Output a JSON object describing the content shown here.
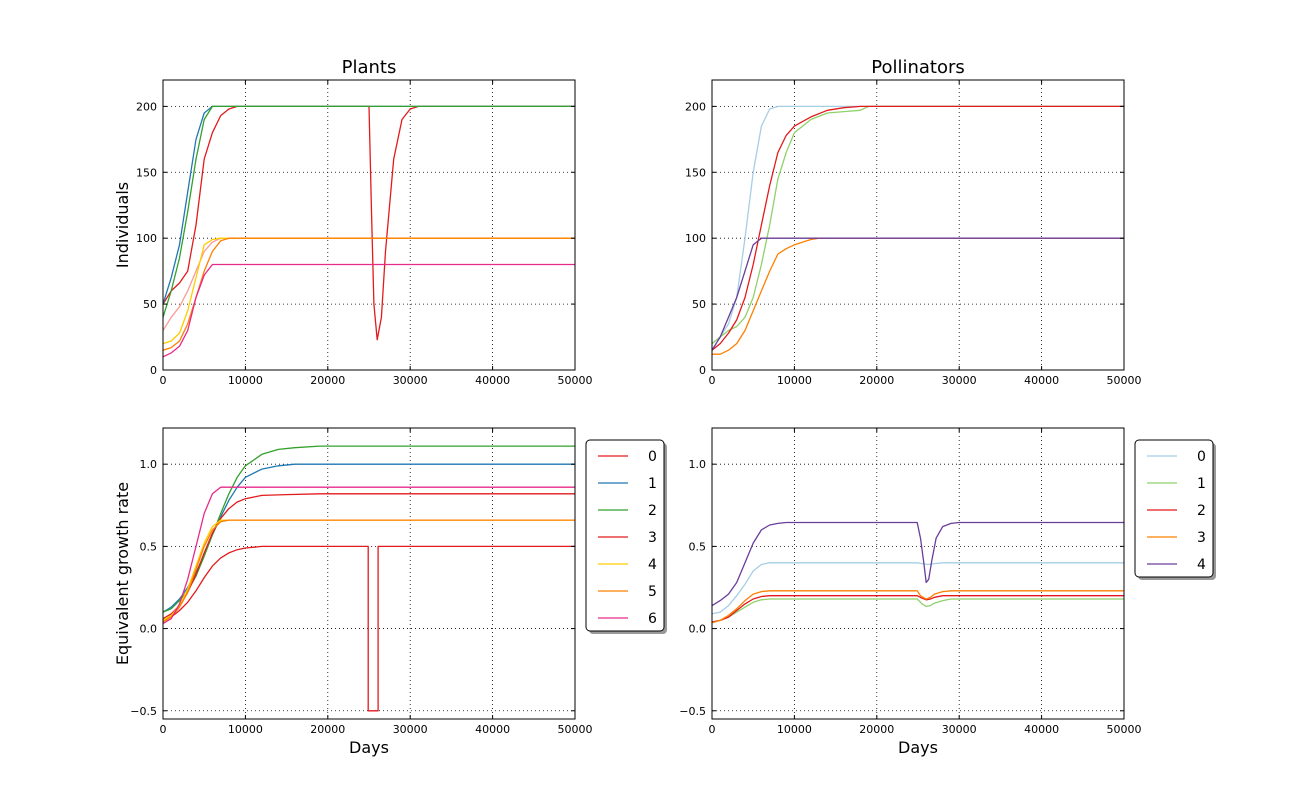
{
  "chart_data": [
    {
      "type": "line",
      "title": "Plants",
      "xlabel": "",
      "ylabel": "Individuals",
      "xlim": [
        0,
        50000
      ],
      "ylim": [
        0,
        220
      ],
      "xticks": [
        0,
        10000,
        20000,
        30000,
        40000,
        50000
      ],
      "yticks": [
        0,
        50,
        100,
        150,
        200
      ],
      "grid": true,
      "series": [
        {
          "color": "#e31a1c",
          "x": [
            0,
            1000,
            2000,
            3000,
            4000,
            5000,
            6000,
            7000,
            8000,
            9000,
            10000,
            25000,
            25300,
            25600,
            26000,
            26500,
            27000,
            28000,
            29000,
            30000,
            31000,
            50000
          ],
          "y": [
            50,
            60,
            66,
            75,
            110,
            160,
            180,
            193,
            198,
            200,
            200,
            200,
            120,
            50,
            23,
            40,
            90,
            160,
            190,
            198,
            200,
            200
          ]
        },
        {
          "color": "#1f78b4",
          "x": [
            0,
            1000,
            2000,
            3000,
            4000,
            5000,
            6000,
            7000,
            50000
          ],
          "y": [
            50,
            70,
            95,
            135,
            175,
            195,
            200,
            200,
            200
          ]
        },
        {
          "color": "#33a02c",
          "x": [
            0,
            1000,
            2000,
            3000,
            4000,
            5000,
            6000,
            7000,
            50000
          ],
          "y": [
            40,
            60,
            85,
            120,
            160,
            190,
            200,
            200,
            200
          ]
        },
        {
          "color": "#fb9a99",
          "x": [
            0,
            1000,
            2000,
            3000,
            4000,
            5000,
            6000,
            7000,
            8000,
            50000
          ],
          "y": [
            30,
            40,
            48,
            60,
            75,
            90,
            97,
            100,
            100,
            100
          ]
        },
        {
          "color": "#ffcc00",
          "x": [
            0,
            1000,
            2000,
            3000,
            4000,
            5000,
            6000,
            7000,
            50000
          ],
          "y": [
            20,
            22,
            28,
            45,
            70,
            95,
            99,
            100,
            100
          ]
        },
        {
          "color": "#ff7f00",
          "x": [
            0,
            1000,
            2000,
            3000,
            4000,
            5000,
            6000,
            7000,
            8000,
            50000
          ],
          "y": [
            15,
            17,
            22,
            35,
            55,
            75,
            90,
            98,
            100,
            100
          ]
        },
        {
          "color": "#e7298a",
          "x": [
            0,
            1000,
            2000,
            3000,
            4000,
            5000,
            6000,
            7000,
            50000
          ],
          "y": [
            10,
            13,
            18,
            30,
            55,
            72,
            80,
            80,
            80
          ]
        }
      ]
    },
    {
      "type": "line",
      "title": "Pollinators",
      "xlabel": "",
      "ylabel": "",
      "xlim": [
        0,
        50000
      ],
      "ylim": [
        0,
        220
      ],
      "xticks": [
        0,
        10000,
        20000,
        30000,
        40000,
        50000
      ],
      "yticks": [
        0,
        50,
        100,
        150,
        200
      ],
      "grid": true,
      "series": [
        {
          "color": "#a6cee3",
          "x": [
            0,
            1000,
            2000,
            3000,
            4000,
            5000,
            6000,
            7000,
            8000,
            50000
          ],
          "y": [
            20,
            25,
            35,
            55,
            100,
            150,
            185,
            198,
            200,
            200
          ]
        },
        {
          "color": "#8fd16b",
          "x": [
            0,
            1000,
            2000,
            3000,
            4000,
            5000,
            6000,
            7000,
            8000,
            9000,
            10000,
            12000,
            14000,
            16000,
            18000,
            19000,
            50000
          ],
          "y": [
            20,
            25,
            30,
            33,
            40,
            55,
            80,
            110,
            145,
            165,
            180,
            190,
            195,
            196,
            197,
            200,
            200
          ]
        },
        {
          "color": "#e31a1c",
          "x": [
            0,
            1000,
            2000,
            3000,
            4000,
            5000,
            6000,
            7000,
            8000,
            9000,
            10000,
            12000,
            14000,
            16000,
            18000,
            50000
          ],
          "y": [
            15,
            20,
            28,
            38,
            55,
            80,
            110,
            140,
            165,
            178,
            185,
            192,
            197,
            199,
            200,
            200
          ]
        },
        {
          "color": "#ff7f00",
          "x": [
            0,
            1000,
            2000,
            3000,
            4000,
            5000,
            6000,
            7000,
            8000,
            9000,
            10000,
            12000,
            13000,
            50000
          ],
          "y": [
            12,
            12,
            15,
            20,
            30,
            45,
            60,
            75,
            88,
            92,
            95,
            99,
            100,
            100
          ]
        },
        {
          "color": "#6a3d9a",
          "x": [
            0,
            1000,
            2000,
            3000,
            4000,
            5000,
            6000,
            7000,
            50000
          ],
          "y": [
            15,
            25,
            40,
            55,
            75,
            95,
            100,
            100,
            100
          ]
        }
      ]
    },
    {
      "type": "line",
      "title": "",
      "xlabel": "Days",
      "ylabel": "Equivalent growth rate",
      "xlim": [
        0,
        50000
      ],
      "ylim": [
        -0.55,
        1.22
      ],
      "xticks": [
        0,
        10000,
        20000,
        30000,
        40000,
        50000
      ],
      "yticks": [
        -0.5,
        0.0,
        0.5,
        1.0
      ],
      "ytick_labels": [
        "−0.5",
        "0.0",
        "0.5",
        "1.0"
      ],
      "grid": true,
      "legend": {
        "position": "right-outside",
        "labels": [
          "0",
          "1",
          "2",
          "3",
          "4",
          "5",
          "6"
        ]
      },
      "series": [
        {
          "name": "0",
          "color": "#e31a1c",
          "x": [
            0,
            1000,
            2000,
            3000,
            4000,
            5000,
            6000,
            7000,
            8000,
            9000,
            10000,
            12000,
            15000,
            24900,
            24901,
            26100,
            26101,
            50000
          ],
          "y": [
            0.05,
            0.07,
            0.11,
            0.16,
            0.23,
            0.31,
            0.38,
            0.43,
            0.46,
            0.48,
            0.49,
            0.5,
            0.5,
            0.5,
            -0.5,
            -0.5,
            0.5,
            0.5
          ]
        },
        {
          "name": "1",
          "color": "#1f78b4",
          "x": [
            0,
            1000,
            2000,
            3000,
            4000,
            5000,
            6000,
            7000,
            8000,
            9000,
            10000,
            12000,
            14000,
            16000,
            20000,
            50000
          ],
          "y": [
            0.1,
            0.13,
            0.18,
            0.25,
            0.34,
            0.45,
            0.57,
            0.68,
            0.78,
            0.86,
            0.92,
            0.97,
            0.99,
            1.0,
            1.0,
            1.0
          ]
        },
        {
          "name": "2",
          "color": "#33a02c",
          "x": [
            0,
            1000,
            2000,
            3000,
            4000,
            5000,
            6000,
            7000,
            8000,
            9000,
            10000,
            12000,
            14000,
            16000,
            19000,
            50000
          ],
          "y": [
            0.1,
            0.12,
            0.17,
            0.23,
            0.32,
            0.44,
            0.57,
            0.7,
            0.82,
            0.92,
            0.99,
            1.06,
            1.09,
            1.1,
            1.11,
            1.11
          ]
        },
        {
          "name": "3",
          "color": "#e31a1c",
          "x": [
            0,
            1000,
            2000,
            3000,
            4000,
            5000,
            6000,
            7000,
            8000,
            9000,
            10000,
            12000,
            15000,
            19000,
            50000
          ],
          "y": [
            0.06,
            0.09,
            0.14,
            0.22,
            0.33,
            0.46,
            0.58,
            0.67,
            0.73,
            0.77,
            0.79,
            0.81,
            0.815,
            0.82,
            0.82
          ]
        },
        {
          "name": "4",
          "color": "#ffcc00",
          "x": [
            0,
            1000,
            2000,
            3000,
            4000,
            5000,
            6000,
            7000,
            8000,
            50000
          ],
          "y": [
            0.05,
            0.08,
            0.14,
            0.24,
            0.38,
            0.52,
            0.62,
            0.66,
            0.66,
            0.66
          ]
        },
        {
          "name": "5",
          "color": "#ff7f00",
          "x": [
            0,
            1000,
            2000,
            3000,
            4000,
            5000,
            6000,
            7000,
            8000,
            50000
          ],
          "y": [
            0.04,
            0.07,
            0.13,
            0.22,
            0.36,
            0.5,
            0.6,
            0.65,
            0.66,
            0.66
          ]
        },
        {
          "name": "6",
          "color": "#e7298a",
          "x": [
            0,
            1000,
            2000,
            3000,
            4000,
            5000,
            6000,
            7000,
            50000
          ],
          "y": [
            0.03,
            0.06,
            0.15,
            0.3,
            0.5,
            0.7,
            0.82,
            0.86,
            0.86
          ]
        }
      ]
    },
    {
      "type": "line",
      "title": "",
      "xlabel": "Days",
      "ylabel": "",
      "xlim": [
        0,
        50000
      ],
      "ylim": [
        -0.55,
        1.22
      ],
      "xticks": [
        0,
        10000,
        20000,
        30000,
        40000,
        50000
      ],
      "yticks": [
        -0.5,
        0.0,
        0.5,
        1.0
      ],
      "ytick_labels": [
        "−0.5",
        "0.0",
        "0.5",
        "1.0"
      ],
      "grid": true,
      "legend": {
        "position": "right-outside",
        "labels": [
          "0",
          "1",
          "2",
          "3",
          "4"
        ]
      },
      "series": [
        {
          "name": "0",
          "color": "#a6cee3",
          "x": [
            0,
            1000,
            2000,
            3000,
            4000,
            5000,
            6000,
            7000,
            8000,
            10000,
            24900,
            25500,
            26200,
            27000,
            28000,
            29000,
            30000,
            50000
          ],
          "y": [
            0.09,
            0.1,
            0.14,
            0.2,
            0.27,
            0.35,
            0.39,
            0.4,
            0.4,
            0.4,
            0.4,
            0.395,
            0.39,
            0.395,
            0.4,
            0.4,
            0.4,
            0.4
          ]
        },
        {
          "name": "1",
          "color": "#8fd16b",
          "x": [
            0,
            1000,
            2000,
            3000,
            4000,
            5000,
            6000,
            7000,
            24900,
            25500,
            26000,
            26500,
            27000,
            28000,
            29000,
            30000,
            50000
          ],
          "y": [
            0.04,
            0.05,
            0.07,
            0.1,
            0.13,
            0.16,
            0.175,
            0.18,
            0.18,
            0.15,
            0.135,
            0.14,
            0.155,
            0.17,
            0.18,
            0.18,
            0.18
          ]
        },
        {
          "name": "2",
          "color": "#e31a1c",
          "x": [
            0,
            1000,
            2000,
            3000,
            4000,
            5000,
            6000,
            7000,
            24900,
            25500,
            26000,
            26500,
            27000,
            28000,
            29000,
            50000
          ],
          "y": [
            0.04,
            0.05,
            0.07,
            0.11,
            0.15,
            0.18,
            0.195,
            0.2,
            0.2,
            0.185,
            0.175,
            0.18,
            0.19,
            0.2,
            0.2,
            0.2
          ]
        },
        {
          "name": "3",
          "color": "#ff7f00",
          "x": [
            0,
            1000,
            2000,
            3000,
            4000,
            5000,
            6000,
            7000,
            24900,
            25300,
            26000,
            26500,
            27000,
            28000,
            29000,
            50000
          ],
          "y": [
            0.035,
            0.05,
            0.08,
            0.12,
            0.17,
            0.21,
            0.225,
            0.23,
            0.23,
            0.2,
            0.18,
            0.19,
            0.21,
            0.225,
            0.23,
            0.23
          ]
        },
        {
          "name": "4",
          "color": "#6a3d9a",
          "x": [
            0,
            1000,
            2000,
            3000,
            4000,
            5000,
            6000,
            7000,
            8000,
            9000,
            10000,
            24900,
            25300,
            25700,
            26000,
            26300,
            26700,
            27200,
            28000,
            29000,
            30000,
            50000
          ],
          "y": [
            0.14,
            0.17,
            0.21,
            0.28,
            0.4,
            0.52,
            0.6,
            0.63,
            0.64,
            0.645,
            0.645,
            0.645,
            0.55,
            0.4,
            0.28,
            0.3,
            0.42,
            0.55,
            0.62,
            0.64,
            0.645,
            0.645
          ]
        }
      ]
    }
  ]
}
